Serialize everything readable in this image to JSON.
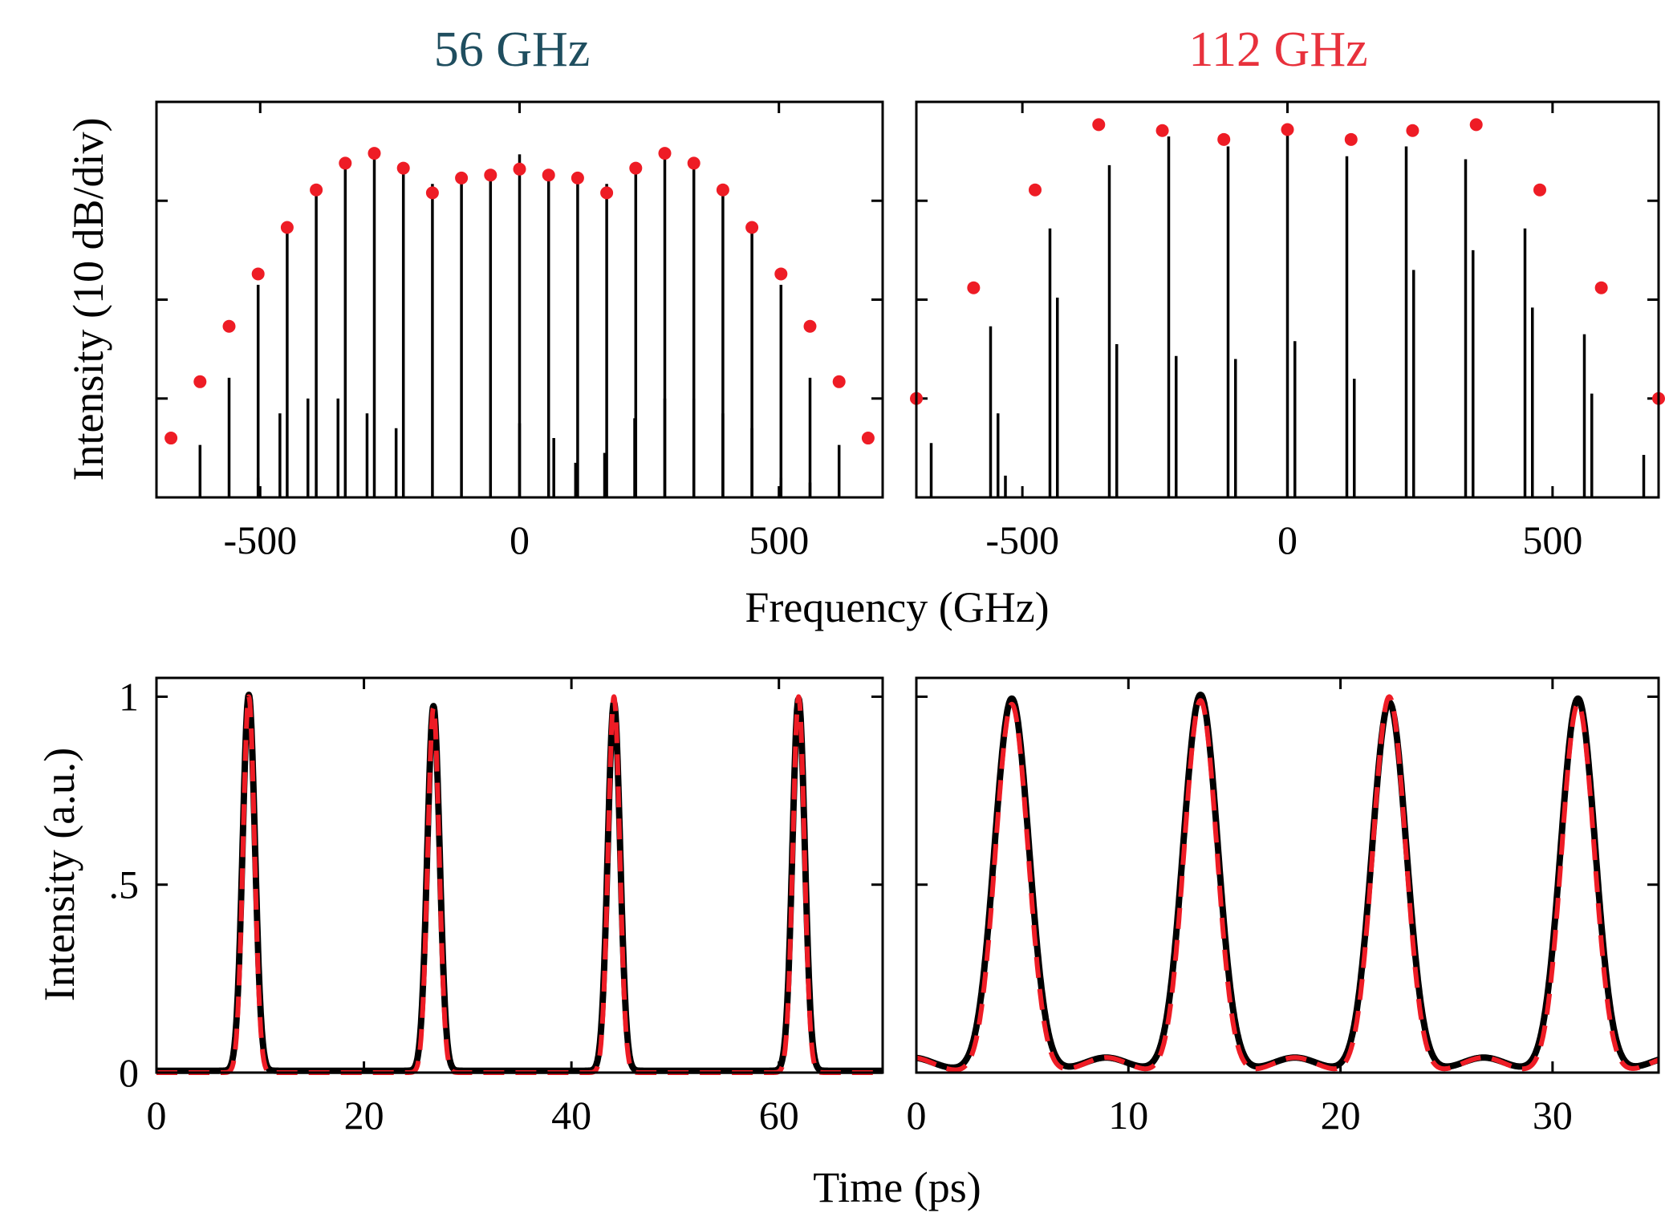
{
  "titles": {
    "left": "56 GHz",
    "left_color": "#1f4e5f",
    "right": "112 GHz",
    "right_color": "#e8313c"
  },
  "labels": {
    "spectrum_ylabel": "Intensity (10 dB/div)",
    "spectrum_xlabel": "Frequency (GHz)",
    "time_ylabel": "Intensity (a.u.)",
    "time_xlabel": "Time (ps)"
  },
  "colors": {
    "measured": "#000000",
    "model": "#ee1c25"
  },
  "chart_data": [
    {
      "id": "spec56",
      "type": "scatter",
      "title": "56 GHz",
      "xlabel": "",
      "ylabel": "Intensity (10 dB/div)",
      "xlim": [
        -700,
        700
      ],
      "ylim": [
        -40,
        0
      ],
      "xticks": [
        -500,
        0,
        500
      ],
      "xtick_labels": [
        "-500",
        "0",
        "500"
      ],
      "yticks": [
        -30,
        -20,
        -10
      ],
      "ytick_labels": [
        "",
        "",
        ""
      ],
      "grid": false,
      "series": [
        {
          "kind": "stem",
          "color": "#000000",
          "x": [
            -616,
            -560,
            -504,
            -448,
            -392,
            -336,
            -280,
            -224,
            -168,
            -112,
            -56,
            0,
            56,
            112,
            168,
            224,
            280,
            336,
            392,
            448,
            504,
            560,
            616
          ],
          "values": [
            -34.7,
            -27.9,
            -18.5,
            -13.1,
            -9.1,
            -6.5,
            -5.2,
            -6.9,
            -8.3,
            -8.0,
            -7.8,
            -5.3,
            -7.8,
            -8.0,
            -8.3,
            -6.9,
            -5.2,
            -6.5,
            -9.1,
            -13.1,
            -18.5,
            -27.9,
            -34.7
          ]
        },
        {
          "kind": "stem",
          "color": "#000000",
          "x": [
            -504,
            -462,
            -408,
            -350,
            -294,
            -238,
            0,
            66,
            108,
            164,
            222,
            280,
            336,
            392,
            448,
            504,
            560
          ],
          "values": [
            -38.0,
            -31.5,
            -30.0,
            -30.0,
            -31.5,
            -33.0,
            -32.5,
            -34.0,
            -36.5,
            -35.5,
            -32.0,
            -30.0,
            -30.0,
            -31.5,
            -33.0,
            -38.0,
            -38.5
          ]
        },
        {
          "kind": "markers",
          "color": "#ee1c25",
          "x": [
            -672,
            -616,
            -560,
            -504,
            -448,
            -392,
            -336,
            -280,
            -224,
            -168,
            -112,
            -56,
            0,
            56,
            112,
            168,
            224,
            280,
            336,
            392,
            448,
            504,
            560,
            616,
            672
          ],
          "values": [
            -34.0,
            -28.3,
            -22.7,
            -17.4,
            -12.7,
            -8.9,
            -6.2,
            -5.2,
            -6.7,
            -9.2,
            -7.7,
            -7.4,
            -6.8,
            -7.4,
            -7.7,
            -9.2,
            -6.7,
            -5.2,
            -6.2,
            -8.9,
            -12.7,
            -17.4,
            -22.7,
            -28.3,
            -34.0
          ]
        }
      ]
    },
    {
      "id": "spec112",
      "type": "scatter",
      "title": "112 GHz",
      "xlabel": "",
      "ylabel": "",
      "xlim": [
        -700,
        700
      ],
      "ylim": [
        -40,
        0
      ],
      "xticks": [
        -500,
        0,
        500
      ],
      "xtick_labels": [
        "-500",
        "0",
        "500"
      ],
      "yticks": [
        -30,
        -20,
        -10
      ],
      "ytick_labels": [
        "",
        "",
        ""
      ],
      "grid": false,
      "series": [
        {
          "kind": "stem",
          "color": "#000000",
          "x": [
            -672,
            -560,
            -448,
            -336,
            -224,
            -112,
            0,
            112,
            224,
            336,
            448,
            560,
            672
          ],
          "values": [
            -34.5,
            -22.7,
            -12.8,
            -6.4,
            -3.5,
            -4.5,
            -3.0,
            -5.5,
            -4.5,
            -5.8,
            -12.8,
            -23.5,
            -35.7
          ]
        },
        {
          "kind": "stem",
          "color": "#000000",
          "x": [
            -546,
            -434,
            -322,
            -210,
            -98,
            14,
            126,
            238,
            350,
            462,
            574
          ],
          "values": [
            -31.5,
            -19.8,
            -24.5,
            -25.7,
            -26.0,
            -24.2,
            -28.0,
            -17.0,
            -15.0,
            -20.8,
            -29.5
          ]
        },
        {
          "kind": "stem",
          "color": "#000000",
          "x": [
            -532
          ],
          "values": [
            -37.8
          ]
        },
        {
          "kind": "markers",
          "color": "#ee1c25",
          "x": [
            -700,
            -592,
            -476,
            -356,
            -236,
            -120,
            0,
            120,
            236,
            356,
            476,
            592,
            700
          ],
          "values": [
            -30.0,
            -18.8,
            -8.9,
            -2.3,
            -2.9,
            -3.8,
            -2.8,
            -3.8,
            -2.9,
            -2.3,
            -8.9,
            -18.8,
            -30.0
          ]
        }
      ]
    },
    {
      "id": "time56",
      "type": "line",
      "title": "",
      "xlabel": "",
      "ylabel": "Intensity (a.u.)",
      "xlim": [
        0,
        70
      ],
      "ylim": [
        0,
        1.05
      ],
      "xticks": [
        0,
        20,
        40,
        60
      ],
      "xtick_labels": [
        "0",
        "20",
        "40",
        "60"
      ],
      "yticks": [
        0,
        0.5,
        1
      ],
      "ytick_labels": [
        "0",
        ".5",
        "1"
      ],
      "grid": false,
      "series": [
        {
          "kind": "line",
          "style": "solid",
          "color": "#000000",
          "pulse_centers": [
            8.9,
            26.7,
            44.1,
            61.9
          ],
          "pulse_peaks": [
            1.0,
            0.97,
            0.98,
            0.99
          ],
          "pulse_width_fwhm": 1.4,
          "baseline": 0.005
        },
        {
          "kind": "line",
          "style": "dashed",
          "color": "#ee1c25",
          "pulse_centers": [
            8.9,
            26.7,
            44.1,
            61.9
          ],
          "pulse_peaks": [
            1.0,
            0.97,
            1.0,
            1.0
          ],
          "pulse_width_fwhm": 1.3,
          "baseline": 0.0
        }
      ]
    },
    {
      "id": "time112",
      "type": "line",
      "title": "",
      "xlabel": "",
      "ylabel": "",
      "xlim": [
        0,
        35
      ],
      "ylim": [
        0,
        1.05
      ],
      "xticks": [
        0,
        10,
        20,
        30
      ],
      "xtick_labels": [
        "0",
        "10",
        "20",
        "30"
      ],
      "yticks": [
        0,
        0.5,
        1
      ],
      "ytick_labels": [
        "",
        "",
        ""
      ],
      "grid": false,
      "series": [
        {
          "kind": "line",
          "style": "solid",
          "color": "#000000",
          "pulse_centers": [
            4.5,
            13.4,
            22.3,
            31.2
          ],
          "pulse_peaks": [
            0.99,
            1.0,
            0.98,
            0.99
          ],
          "pulse_width_fwhm": 1.9,
          "side_lobe_centers": [
            -0.2,
            8.95,
            17.85,
            26.75,
            35.6
          ],
          "side_lobe_height": 0.035,
          "baseline": 0.005
        },
        {
          "kind": "line",
          "style": "dashed",
          "color": "#ee1c25",
          "pulse_centers": [
            4.5,
            13.4,
            22.3,
            31.2
          ],
          "pulse_peaks": [
            0.98,
            0.99,
            1.0,
            0.98
          ],
          "pulse_width_fwhm": 1.8,
          "side_lobe_centers": [
            -0.2,
            8.95,
            17.85,
            26.75,
            35.6
          ],
          "side_lobe_height": 0.04,
          "baseline": 0.0
        }
      ]
    }
  ]
}
